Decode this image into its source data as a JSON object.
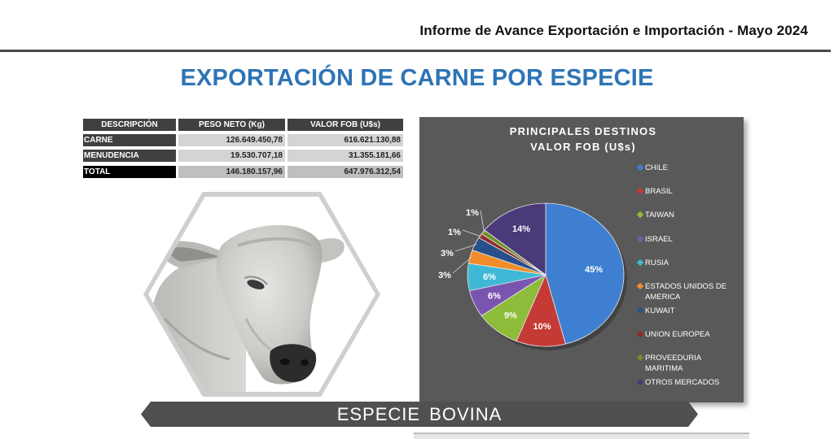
{
  "header": {
    "report_title": "Informe  de  Avance Exportación e Importación - Mayo 2024"
  },
  "main_title": "EXPORTACIÓN DE CARNE POR ESPECIE",
  "table": {
    "headers": [
      "DESCRIPCIÓN",
      "PESO NETO (Kg)",
      "VALOR FOB (U$s)"
    ],
    "rows": [
      {
        "label": "CARNE",
        "peso": "126.649.450,78",
        "valor": "616.621.130,88"
      },
      {
        "label": "MENUDENCIA",
        "peso": "19.530.707,18",
        "valor": "31.355.181,66"
      },
      {
        "label": "TOTAL",
        "peso": "146.180.157,96",
        "valor": "647.976.312,54"
      }
    ]
  },
  "chart_data": {
    "type": "pie",
    "title_line1": "PRINCIPALES DESTINOS",
    "title_line2": "VALOR FOB (U$s)",
    "legend_position": "right",
    "labels": [
      "CHILE",
      "BRASIL",
      "TAIWAN",
      "ISRAEL",
      "RUSIA",
      "ESTADOS UNIDOS DE AMERICA",
      "KUWAIT",
      "UNION EUROPEA",
      "PROVEEDURIA MARITIMA",
      "OTROS MERCADOS"
    ],
    "values": [
      45,
      10,
      9,
      6,
      6,
      3,
      3,
      1,
      1,
      14
    ],
    "value_labels": [
      "45%",
      "10%",
      "9%",
      "6%",
      "6%",
      "3%",
      "3%",
      "1%",
      "1%",
      "14%"
    ],
    "colors": [
      "#3f7fd1",
      "#c63a36",
      "#8dbb3a",
      "#7a55b0",
      "#3fb8d6",
      "#f08c2a",
      "#284f8c",
      "#8f2a2a",
      "#6e8f2a",
      "#4a3a7a"
    ]
  },
  "image": {
    "subject": "bovine-head-photo"
  },
  "banner": {
    "species": "ESPECIE  BOVINA"
  }
}
